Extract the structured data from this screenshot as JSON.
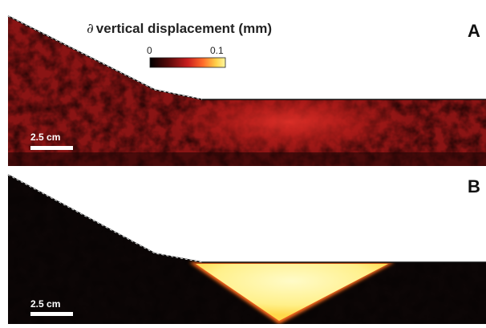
{
  "figure": {
    "colorbar_title_symbol": "∂",
    "colorbar_title_text": "vertical displacement (mm)",
    "colorbar_min_label": "0",
    "colorbar_max_label": "0.1",
    "colormap": [
      "#000000",
      "#5a0a0a",
      "#c81e1e",
      "#ff6a2a",
      "#ffd24a",
      "#fff7a0"
    ],
    "panels": [
      {
        "label": "A",
        "scale_bar_label": "2.5 cm",
        "field_color": "#8a1414",
        "hotspot_color": "#c8201c"
      },
      {
        "label": "B",
        "scale_bar_label": "2.5 cm",
        "field_color": "#0c0606",
        "hotspot_color": "#fff39a"
      }
    ]
  }
}
